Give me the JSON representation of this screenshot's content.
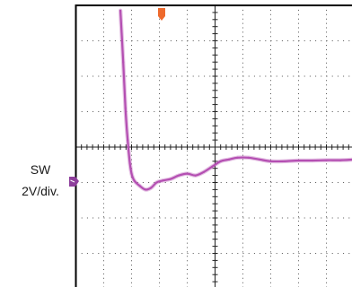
{
  "chart_data": {
    "type": "line",
    "channel_label": "SW",
    "scale_label": "2V/div.",
    "x_divisions": 10,
    "y_divisions": 8,
    "xlim": [
      0,
      10
    ],
    "ylim": [
      -4,
      4
    ],
    "ground_level_div": -0.2,
    "trigger_position_div": 0.3,
    "series": [
      {
        "x": [
          1.6,
          1.7,
          1.78,
          1.86,
          1.94,
          2.0,
          2.1,
          2.3,
          2.5,
          2.7,
          2.9,
          3.1,
          3.4,
          3.7,
          4.0,
          4.3,
          4.6,
          4.9,
          5.2,
          5.5,
          5.8,
          6.2,
          6.6,
          7.0,
          7.5,
          8.0,
          8.5,
          9.0,
          9.5,
          10.0
        ],
        "y": [
          3.85,
          2.4,
          1.1,
          0.2,
          -0.45,
          -0.75,
          -0.95,
          -1.1,
          -1.2,
          -1.15,
          -1.0,
          -0.95,
          -0.9,
          -0.8,
          -0.75,
          -0.8,
          -0.7,
          -0.55,
          -0.4,
          -0.35,
          -0.3,
          -0.3,
          -0.35,
          -0.4,
          -0.4,
          -0.38,
          -0.38,
          -0.37,
          -0.37,
          -0.35
        ],
        "color": "#b44fb2"
      }
    ],
    "colors": {
      "trace": "#b44fb2",
      "trigger_marker": "#ee6a2d",
      "ground_marker": "#8e3f9c",
      "grid": "#555555",
      "frame": "#000000"
    }
  }
}
